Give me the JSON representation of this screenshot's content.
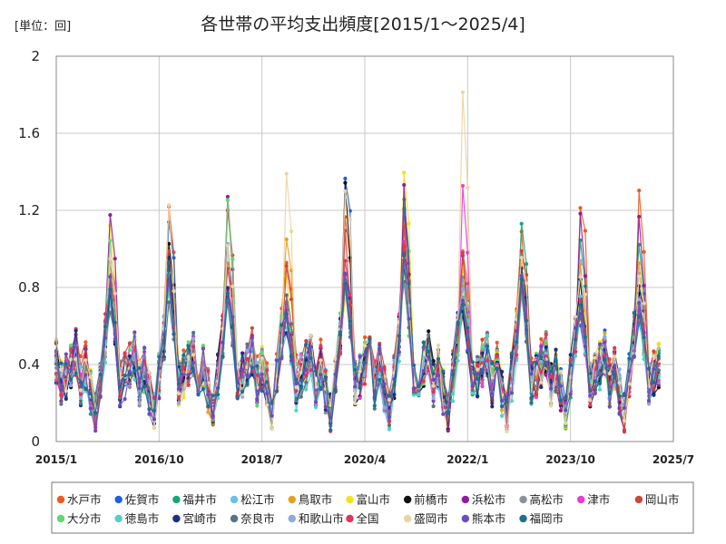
{
  "chart_data": {
    "type": "line",
    "title": "各世帯の平均支出頻度[2015/1～2025/4]",
    "unit_label": "[単位：回]",
    "xlabel": "",
    "ylabel": "",
    "x_start": "2015-01",
    "x_end": "2025-07",
    "ylim": [
      0,
      2
    ],
    "yticks": [
      "0",
      "0.4",
      "0.8",
      "1.2",
      "1.6",
      "2"
    ],
    "xticks": [
      {
        "label": "2015/1",
        "month": "2015-01"
      },
      {
        "label": "2016/10",
        "month": "2016-10"
      },
      {
        "label": "2018/7",
        "month": "2018-07"
      },
      {
        "label": "2020/4",
        "month": "2020-04"
      },
      {
        "label": "2022/1",
        "month": "2022-01"
      },
      {
        "label": "2023/10",
        "month": "2023-10"
      },
      {
        "label": "2025/7",
        "month": "2025-07"
      }
    ],
    "grid": true,
    "legend_position": "bottom",
    "series": [
      {
        "name": "水戸市",
        "color": "#ee5a1c",
        "peaks": [
          0.95,
          1.2,
          1.0,
          0.98,
          1.2,
          1.2,
          1.04,
          1.18,
          1.29
        ],
        "bias": 0.03
      },
      {
        "name": "佐賀市",
        "color": "#1f5fe0",
        "peaks": [
          0.86,
          1.18,
          0.8,
          0.7,
          1.42,
          1.18,
          1.0,
          0.82,
          0.66
        ],
        "bias": 0.0
      },
      {
        "name": "福井市",
        "color": "#16a67a",
        "peaks": [
          0.85,
          0.9,
          0.8,
          0.72,
          0.9,
          1.38,
          0.7,
          1.22,
          1.04
        ],
        "bias": 0.0
      },
      {
        "name": "松江市",
        "color": "#6bbef0",
        "peaks": [
          0.8,
          0.92,
          0.75,
          0.6,
          0.85,
          1.0,
          0.7,
          0.85,
          0.96
        ],
        "bias": 0.0
      },
      {
        "name": "鳥取市",
        "color": "#e6a21e",
        "peaks": [
          0.85,
          0.95,
          0.9,
          1.05,
          0.9,
          1.0,
          0.8,
          1.0,
          0.97
        ],
        "bias": 0.01
      },
      {
        "name": "富山市",
        "color": "#f2e21a",
        "peaks": [
          1.12,
          1.02,
          0.85,
          0.9,
          0.8,
          1.48,
          1.0,
          0.9,
          0.8
        ],
        "bias": 0.0
      },
      {
        "name": "前橋市",
        "color": "#111111",
        "peaks": [
          0.8,
          1.08,
          1.11,
          0.75,
          1.47,
          1.06,
          0.72,
          0.9,
          0.83
        ],
        "bias": 0.0
      },
      {
        "name": "浜松市",
        "color": "#8e1fa0",
        "peaks": [
          1.22,
          0.9,
          1.35,
          0.7,
          0.9,
          1.38,
          0.8,
          0.85,
          1.2
        ],
        "bias": 0.0
      },
      {
        "name": "高松市",
        "color": "#8a919c",
        "peaks": [
          0.77,
          0.8,
          0.82,
          0.7,
          0.85,
          1.0,
          0.9,
          0.9,
          0.7
        ],
        "bias": 0.0
      },
      {
        "name": "津市",
        "color": "#ea3cd2",
        "peaks": [
          1.0,
          0.9,
          0.8,
          0.72,
          0.85,
          1.05,
          1.38,
          0.9,
          0.7
        ],
        "bias": 0.0
      },
      {
        "name": "岡山市",
        "color": "#d0463a",
        "peaks": [
          0.95,
          1.0,
          1.2,
          0.95,
          1.1,
          1.12,
          1.0,
          1.05,
          0.75
        ],
        "bias": 0.02
      },
      {
        "name": "大分市",
        "color": "#5fd870",
        "peaks": [
          1.03,
          0.85,
          1.23,
          0.68,
          0.8,
          0.9,
          0.75,
          0.85,
          0.72
        ],
        "bias": 0.0
      },
      {
        "name": "徳島市",
        "color": "#52d0c8",
        "peaks": [
          0.75,
          0.85,
          0.8,
          0.6,
          0.8,
          0.9,
          0.7,
          0.8,
          0.7
        ],
        "bias": -0.02
      },
      {
        "name": "宮崎市",
        "color": "#1a2f82",
        "peaks": [
          0.8,
          1.0,
          0.85,
          0.6,
          0.9,
          1.0,
          0.75,
          0.95,
          0.8
        ],
        "bias": 0.0
      },
      {
        "name": "奈良市",
        "color": "#5a7382",
        "peaks": [
          0.7,
          0.8,
          0.75,
          0.75,
          0.85,
          0.9,
          0.8,
          0.85,
          0.7
        ],
        "bias": -0.01
      },
      {
        "name": "和歌山市",
        "color": "#8fa8e0",
        "peaks": [
          0.85,
          0.9,
          1.05,
          0.65,
          0.9,
          1.0,
          0.85,
          0.9,
          0.75
        ],
        "bias": 0.0
      },
      {
        "name": "全国",
        "color": "#e4345a",
        "peaks": [
          0.88,
          0.92,
          0.9,
          0.7,
          1.0,
          1.08,
          0.75,
          0.85,
          0.75
        ],
        "bias": 0.0
      },
      {
        "name": "盛岡市",
        "color": "#ecd4a0",
        "peaks": [
          1.05,
          1.24,
          1.0,
          1.4,
          1.4,
          1.0,
          1.89,
          1.0,
          0.9
        ],
        "bias": 0.0
      },
      {
        "name": "熊本市",
        "color": "#6c4ac6",
        "peaks": [
          0.85,
          0.9,
          0.84,
          0.7,
          0.95,
          1.0,
          0.75,
          0.9,
          0.72
        ],
        "bias": 0.0
      },
      {
        "name": "福岡市",
        "color": "#1f6f8e",
        "peaks": [
          0.8,
          0.92,
          0.82,
          0.65,
          0.9,
          1.0,
          0.72,
          0.88,
          0.7
        ],
        "bias": 0.0
      }
    ]
  }
}
